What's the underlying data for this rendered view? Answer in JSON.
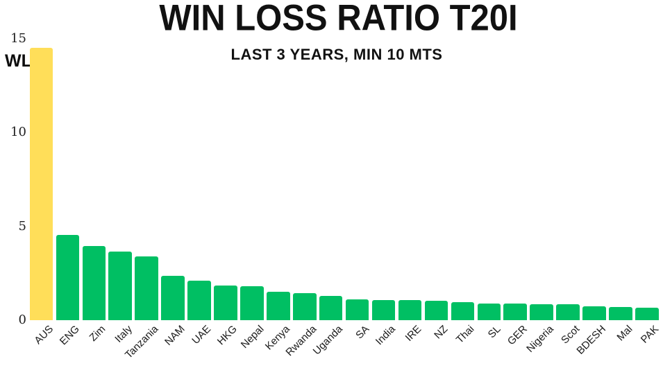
{
  "chart_data": {
    "type": "bar",
    "title": "WIN LOSS RATIO T20I",
    "subtitle": "LAST 3 YEARS, MIN 10 MTS",
    "ylabel": "WL",
    "xlabel": "",
    "categories": [
      "AUS",
      "ENG",
      "Zim",
      "Italy",
      "Tanzania",
      "NAM",
      "UAE",
      "HKG",
      "Nepal",
      "Kenya",
      "Rwanda",
      "Uganda",
      "SA",
      "India",
      "IRE",
      "NZ",
      "Thai",
      "SL",
      "GER",
      "Nigeria",
      "Scot",
      "BDESH",
      "Mal",
      "PAK"
    ],
    "values": [
      14.5,
      4.55,
      3.95,
      3.65,
      3.4,
      2.35,
      2.1,
      1.83,
      1.81,
      1.53,
      1.43,
      1.3,
      1.12,
      1.08,
      1.06,
      1.05,
      0.95,
      0.9,
      0.88,
      0.86,
      0.85,
      0.72,
      0.7,
      0.65
    ],
    "ylim": [
      0,
      15
    ],
    "yticks": [
      0,
      5,
      10,
      15
    ],
    "grid": false,
    "legend": null,
    "colors": {
      "highlight_bar": "#FFDE59",
      "default_bar": "#00BF63",
      "title_text": "#111111",
      "tick_text": "#1f1f1f"
    },
    "highlight_index": 0
  }
}
